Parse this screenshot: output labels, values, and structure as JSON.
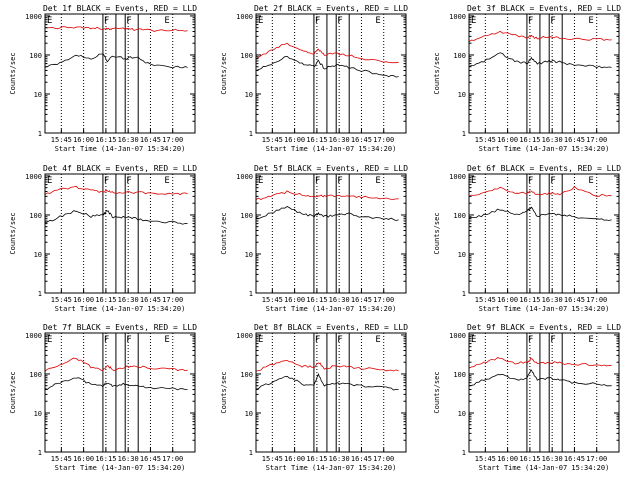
{
  "ylabel": "Counts/sec",
  "xlabel": "Start Time (14-Jan-07 15:34:20)",
  "x_tick_labels": [
    "15:45",
    "16:00",
    "16:15",
    "16:30",
    "16:45",
    "17:00"
  ],
  "y_tick_labels": [
    "1",
    "10",
    "100",
    "1000"
  ],
  "colors": {
    "events": "#000000",
    "lld": "#dd0000"
  },
  "chart_data": [
    {
      "type": "line",
      "title": "Det 1f BLACK = Events, RED = LLD",
      "markers": {
        "F": [
          "16:13",
          "16:28"
        ],
        "E": [
          "15:34",
          "16:53"
        ]
      },
      "x": [
        "15:34",
        "15:44",
        "15:55",
        "16:05",
        "16:13",
        "16:16",
        "16:20",
        "16:28",
        "16:35",
        "16:45",
        "17:00",
        "17:10"
      ],
      "series": [
        {
          "name": "Events",
          "values": [
            50,
            60,
            100,
            80,
            110,
            70,
            95,
            80,
            90,
            55,
            50,
            48
          ]
        },
        {
          "name": "LLD",
          "values": [
            500,
            500,
            520,
            480,
            480,
            470,
            480,
            470,
            450,
            430,
            430,
            420
          ]
        }
      ]
    },
    {
      "type": "line",
      "title": "Det 2f BLACK = Events, RED = LLD",
      "markers": {
        "F": [
          "16:13",
          "16:28"
        ],
        "E": [
          "15:34",
          "16:53"
        ]
      },
      "x": [
        "15:34",
        "15:44",
        "15:55",
        "16:05",
        "16:13",
        "16:16",
        "16:20",
        "16:28",
        "16:35",
        "16:45",
        "17:00",
        "17:10"
      ],
      "series": [
        {
          "name": "Events",
          "values": [
            40,
            60,
            90,
            60,
            50,
            70,
            45,
            55,
            50,
            40,
            30,
            28
          ]
        },
        {
          "name": "LLD",
          "values": [
            80,
            130,
            200,
            130,
            110,
            140,
            100,
            110,
            100,
            80,
            70,
            65
          ]
        }
      ]
    },
    {
      "type": "line",
      "title": "Det 3f BLACK = Events, RED = LLD",
      "markers": {
        "F": [
          "16:13",
          "16:28"
        ],
        "E": [
          "15:34",
          "16:53"
        ]
      },
      "x": [
        "15:34",
        "15:44",
        "15:55",
        "16:05",
        "16:13",
        "16:16",
        "16:20",
        "16:28",
        "16:35",
        "16:45",
        "17:00",
        "17:10"
      ],
      "series": [
        {
          "name": "Events",
          "values": [
            50,
            70,
            110,
            70,
            60,
            80,
            60,
            70,
            65,
            55,
            50,
            48
          ]
        },
        {
          "name": "LLD",
          "values": [
            230,
            300,
            400,
            320,
            280,
            300,
            270,
            290,
            280,
            260,
            250,
            245
          ]
        }
      ]
    },
    {
      "type": "line",
      "title": "Det 4f BLACK = Events, RED = LLD",
      "markers": {
        "F": [
          "16:13",
          "16:28"
        ],
        "E": [
          "15:34",
          "16:53"
        ]
      },
      "x": [
        "15:34",
        "15:44",
        "15:55",
        "16:05",
        "16:13",
        "16:16",
        "16:20",
        "16:28",
        "16:35",
        "16:45",
        "17:00",
        "17:10"
      ],
      "series": [
        {
          "name": "Events",
          "values": [
            60,
            90,
            130,
            90,
            100,
            130,
            85,
            90,
            80,
            70,
            65,
            60
          ]
        },
        {
          "name": "LLD",
          "values": [
            350,
            450,
            520,
            420,
            400,
            420,
            380,
            390,
            380,
            360,
            360,
            350
          ]
        }
      ]
    },
    {
      "type": "line",
      "title": "Det 5f BLACK = Events, RED = LLD",
      "markers": {
        "F": [
          "16:13",
          "16:28"
        ],
        "E": [
          "15:34",
          "16:53"
        ]
      },
      "x": [
        "15:34",
        "15:44",
        "15:55",
        "16:05",
        "16:13",
        "16:16",
        "16:20",
        "16:28",
        "16:35",
        "16:45",
        "17:00",
        "17:10"
      ],
      "series": [
        {
          "name": "Events",
          "values": [
            80,
            110,
            160,
            110,
            90,
            110,
            90,
            100,
            110,
            90,
            80,
            75
          ]
        },
        {
          "name": "LLD",
          "values": [
            250,
            300,
            400,
            320,
            300,
            320,
            300,
            310,
            320,
            290,
            270,
            260
          ]
        }
      ]
    },
    {
      "type": "line",
      "title": "Det 6f BLACK = Events, RED = LLD",
      "markers": {
        "F": [
          "16:13",
          "16:28"
        ],
        "E": [
          "15:34",
          "16:53"
        ]
      },
      "x": [
        "15:34",
        "15:44",
        "15:55",
        "16:05",
        "16:13",
        "16:16",
        "16:20",
        "16:28",
        "16:35",
        "16:45",
        "17:00",
        "17:10"
      ],
      "series": [
        {
          "name": "Events",
          "values": [
            80,
            100,
            140,
            100,
            120,
            160,
            90,
            110,
            100,
            90,
            80,
            75
          ]
        },
        {
          "name": "LLD",
          "values": [
            300,
            380,
            500,
            380,
            360,
            400,
            340,
            360,
            350,
            500,
            320,
            310
          ]
        }
      ]
    },
    {
      "type": "line",
      "title": "Det 7f BLACK = Events, RED = LLD",
      "markers": {
        "F": [
          "16:13",
          "16:28"
        ],
        "E": [
          "15:34",
          "16:53"
        ]
      },
      "x": [
        "15:34",
        "15:44",
        "15:55",
        "16:05",
        "16:13",
        "16:16",
        "16:20",
        "16:28",
        "16:35",
        "16:45",
        "17:00",
        "17:10"
      ],
      "series": [
        {
          "name": "Events",
          "values": [
            40,
            60,
            80,
            55,
            50,
            60,
            48,
            55,
            50,
            45,
            42,
            40
          ]
        },
        {
          "name": "LLD",
          "values": [
            120,
            180,
            260,
            150,
            130,
            160,
            130,
            150,
            160,
            140,
            130,
            125
          ]
        }
      ]
    },
    {
      "type": "line",
      "title": "Det 8f BLACK = Events, RED = LLD",
      "markers": {
        "F": [
          "16:13",
          "16:28"
        ],
        "E": [
          "15:34",
          "16:53"
        ]
      },
      "x": [
        "15:34",
        "15:44",
        "15:55",
        "16:05",
        "16:13",
        "16:16",
        "16:20",
        "16:28",
        "16:35",
        "16:45",
        "17:00",
        "17:10"
      ],
      "series": [
        {
          "name": "Events",
          "values": [
            40,
            60,
            90,
            55,
            50,
            100,
            50,
            60,
            55,
            50,
            45,
            40
          ]
        },
        {
          "name": "LLD",
          "values": [
            120,
            170,
            230,
            160,
            150,
            200,
            140,
            160,
            150,
            140,
            130,
            120
          ]
        }
      ]
    },
    {
      "type": "line",
      "title": "Det 9f BLACK = Events, RED = LLD",
      "markers": {
        "F": [
          "16:13",
          "16:28"
        ],
        "E": [
          "15:34",
          "16:53"
        ]
      },
      "x": [
        "15:34",
        "15:44",
        "15:55",
        "16:05",
        "16:13",
        "16:16",
        "16:20",
        "16:28",
        "16:35",
        "16:45",
        "17:00",
        "17:10"
      ],
      "series": [
        {
          "name": "Events",
          "values": [
            50,
            70,
            100,
            70,
            80,
            130,
            70,
            80,
            70,
            60,
            55,
            50
          ]
        },
        {
          "name": "LLD",
          "values": [
            150,
            200,
            260,
            190,
            200,
            250,
            180,
            200,
            190,
            180,
            170,
            165
          ]
        }
      ]
    }
  ]
}
